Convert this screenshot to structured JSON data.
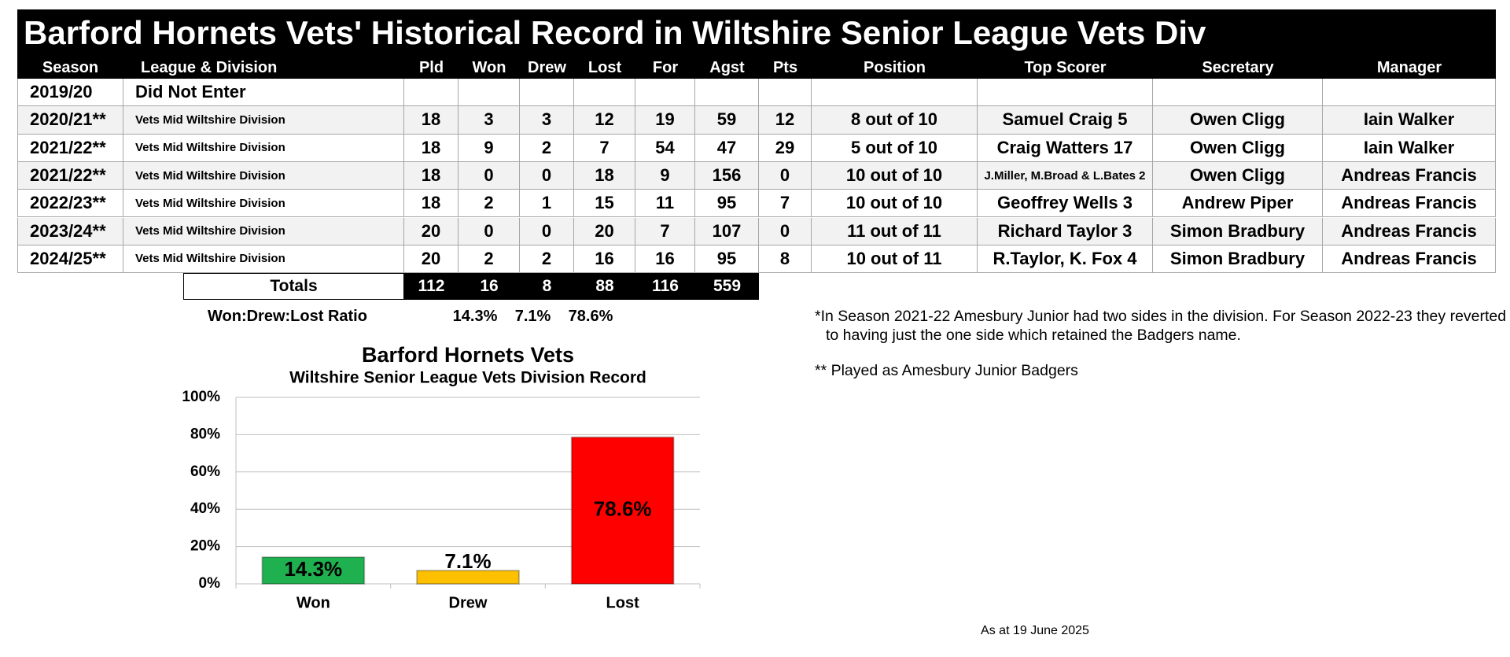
{
  "title": "Barford Hornets Vets' Historical Record in Wiltshire Senior League Vets Div",
  "table": {
    "header": [
      "Season",
      "League & Division",
      "Pld",
      "Won",
      "Drew",
      "Lost",
      "For",
      "Agst",
      "Pts",
      "Position",
      "Top Scorer",
      "Secretary",
      "Manager"
    ],
    "rows": [
      [
        "2019/20",
        "Did Not Enter",
        null,
        null,
        null,
        null,
        null,
        null,
        null,
        null,
        null,
        null,
        null
      ],
      [
        "2020/21**",
        "Vets Mid Wiltshire Division",
        18,
        3,
        3,
        12,
        19,
        59,
        12,
        "8 out of  10",
        "Samuel Craig 5",
        "Owen Cligg",
        "Iain Walker"
      ],
      [
        "2021/22**",
        "Vets Mid Wiltshire Division",
        18,
        9,
        2,
        7,
        54,
        47,
        29,
        "5 out of  10",
        "Craig Watters 17",
        "Owen Cligg",
        "Iain Walker"
      ],
      [
        "2021/22**",
        "Vets Mid Wiltshire Division",
        18,
        0,
        0,
        18,
        9,
        156,
        0,
        "10 out of  10",
        "J.Miller, M.Broad & L.Bates 2",
        "Owen Cligg",
        "Andreas Francis"
      ],
      [
        "2022/23**",
        "Vets Mid Wiltshire Division",
        18,
        2,
        1,
        15,
        11,
        95,
        7,
        "10 out of  10",
        "Geoffrey Wells 3",
        "Andrew Piper",
        "Andreas Francis"
      ],
      [
        "2023/24**",
        "Vets Mid Wiltshire Division",
        20,
        0,
        0,
        20,
        7,
        107,
        0,
        "11 out of  11",
        "Richard Taylor 3",
        "Simon Bradbury",
        "Andreas Francis"
      ],
      [
        "2024/25**",
        "Vets Mid Wiltshire Division",
        20,
        2,
        2,
        16,
        16,
        95,
        8,
        "10 out of  11",
        "R.Taylor, K. Fox 4",
        "Simon Bradbury",
        "Andreas Francis"
      ]
    ]
  },
  "totals": {
    "label": "Totals",
    "values": [
      112,
      16,
      8,
      88,
      116,
      559
    ]
  },
  "ratio": {
    "label": "Won:Drew:Lost Ratio",
    "values": [
      "14.3%",
      "7.1%",
      "78.6%"
    ]
  },
  "notes": [
    "*In Season 2021-22 Amesbury Junior had two sides in the division. For Season 2022-23 they reverted to having just the one side which retained the Badgers name.",
    "** Played as Amesbury Junior Badgers"
  ],
  "as_at": "As at 19 June 2025",
  "chart_data": {
    "type": "bar",
    "title": "Barford Hornets Vets",
    "subtitle": "Wiltshire Senior League Vets Division Record",
    "categories": [
      "Won",
      "Drew",
      "Lost"
    ],
    "values": [
      14.3,
      7.1,
      78.6
    ],
    "value_labels": [
      "14.3%",
      "7.1%",
      "78.6%"
    ],
    "colors": [
      "#1fb04f",
      "#ffc000",
      "#ff0000"
    ],
    "ylim": [
      0,
      100
    ],
    "yticks": [
      {
        "value": 0,
        "label": "0%"
      },
      {
        "value": 20,
        "label": "20%"
      },
      {
        "value": 40,
        "label": "40%"
      },
      {
        "value": 60,
        "label": "60%"
      },
      {
        "value": 80,
        "label": "80%"
      },
      {
        "value": 100,
        "label": "100%"
      }
    ],
    "grid": true
  }
}
